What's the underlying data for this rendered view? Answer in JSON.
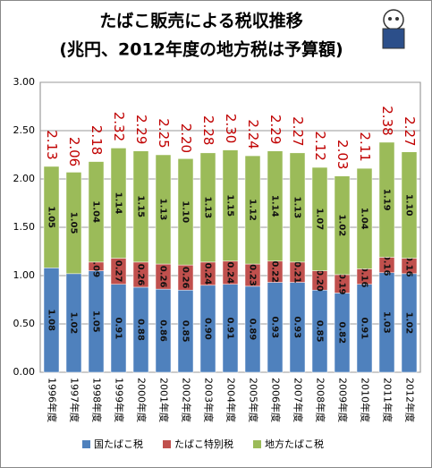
{
  "chart_data": {
    "type": "stacked-bar",
    "title": "たばこ販売による税収推移",
    "subtitle": "(兆円、2012年度の地方税は予算額)",
    "categories": [
      "1996年度",
      "1997年度",
      "1998年度",
      "1999年度",
      "2000年度",
      "2001年度",
      "2002年度",
      "2003年度",
      "2004年度",
      "2005年度",
      "2006年度",
      "2007年度",
      "2008年度",
      "2009年度",
      "2010年度",
      "2011年度",
      "2012年度"
    ],
    "series": [
      {
        "name": "国たばこ税",
        "color": "#4f81bd",
        "values": [
          1.08,
          1.02,
          1.05,
          0.91,
          0.88,
          0.86,
          0.85,
          0.9,
          0.91,
          0.89,
          0.93,
          0.93,
          0.85,
          0.82,
          0.91,
          1.03,
          1.02
        ],
        "value_labels": [
          "1.08",
          "1.02",
          "1.05",
          "0.91",
          "0.88",
          "0.86",
          "0.85",
          "0.90",
          "0.91",
          "0.89",
          "0.93",
          "0.93",
          "0.85",
          "0.82",
          "0.91",
          "1.03",
          "1.02"
        ]
      },
      {
        "name": "たばこ特別税",
        "color": "#c0504d",
        "values": [
          null,
          null,
          0.09,
          0.27,
          0.26,
          0.26,
          0.26,
          0.24,
          0.24,
          0.23,
          0.22,
          0.21,
          0.2,
          0.19,
          0.16,
          0.16,
          0.16
        ],
        "value_labels": [
          null,
          null,
          "0.09",
          "0.27",
          "0.26",
          "0.26",
          "0.26",
          "0.24",
          "0.24",
          "0.23",
          "0.22",
          "0.21",
          "0.20",
          "0.19",
          "0.16",
          "0.16",
          "0.16"
        ]
      },
      {
        "name": "地方たばこ税",
        "color": "#9bbb59",
        "values": [
          1.05,
          1.05,
          1.04,
          1.14,
          1.15,
          1.13,
          1.1,
          1.13,
          1.15,
          1.12,
          1.14,
          1.13,
          1.07,
          1.02,
          1.04,
          1.19,
          1.1
        ],
        "value_labels": [
          "1.05",
          "1.05",
          "1.04",
          "1.14",
          "1.15",
          "1.13",
          "1.10",
          "1.13",
          "1.15",
          "1.12",
          "1.14",
          "1.13",
          "1.07",
          "1.02",
          "1.04",
          "1.19",
          "1.10"
        ]
      }
    ],
    "totals": {
      "color": "#c00000",
      "values": [
        2.13,
        2.06,
        2.18,
        2.32,
        2.29,
        2.25,
        2.2,
        2.28,
        2.3,
        2.24,
        2.29,
        2.27,
        2.12,
        2.03,
        2.11,
        2.38,
        2.27
      ],
      "value_labels": [
        "2.13",
        "2.06",
        "2.18",
        "2.32",
        "2.29",
        "2.25",
        "2.20",
        "2.28",
        "2.30",
        "2.24",
        "2.29",
        "2.27",
        "2.12",
        "2.03",
        "2.11",
        "2.38",
        "2.27"
      ]
    },
    "ylim": [
      0,
      3
    ],
    "yticks": [
      {
        "value": 0,
        "label": "0.00"
      },
      {
        "value": 0.5,
        "label": "0.50"
      },
      {
        "value": 1,
        "label": "1.00"
      },
      {
        "value": 1.5,
        "label": "1.50"
      },
      {
        "value": 2,
        "label": "2.00"
      },
      {
        "value": 2.5,
        "label": "2.50"
      },
      {
        "value": 3,
        "label": "3.00"
      }
    ],
    "grid": true
  }
}
